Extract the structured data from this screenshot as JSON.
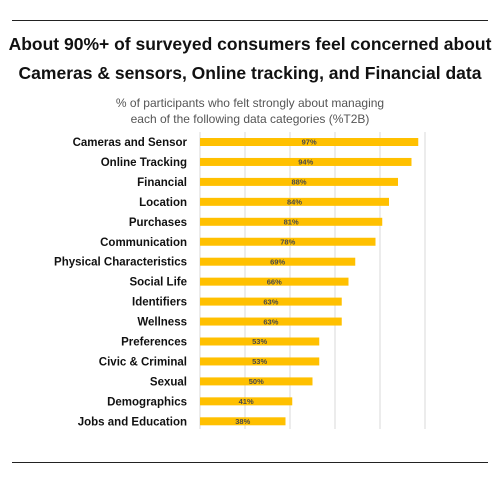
{
  "header": {
    "title_line1": "About 90%+ of surveyed consumers feel concerned about",
    "title_line2": "Cameras & sensors, Online tracking, and Financial data"
  },
  "chart_data": {
    "type": "bar",
    "orientation": "horizontal",
    "subtitle_line1": "% of participants who felt strongly about managing",
    "subtitle_line2": "each of the following data categories (%T2B)",
    "categories": [
      "Cameras and Sensor",
      "Online Tracking",
      "Financial",
      "Location",
      "Purchases",
      "Communication",
      "Physical Characteristics",
      "Social Life",
      "Identifiers",
      "Wellness",
      "Preferences",
      "Civic & Criminal",
      "Sexual",
      "Demographics",
      "Jobs and Education"
    ],
    "values": [
      97,
      94,
      88,
      84,
      81,
      78,
      69,
      66,
      63,
      63,
      53,
      53,
      50,
      41,
      38
    ],
    "value_labels": [
      "97%",
      "94%",
      "88%",
      "84%",
      "81%",
      "78%",
      "69%",
      "66%",
      "63%",
      "63%",
      "53%",
      "53%",
      "50%",
      "41%",
      "38%"
    ],
    "xlim": [
      0,
      100
    ],
    "grid": true,
    "legend": "none",
    "bar_color": "#FFC000"
  }
}
